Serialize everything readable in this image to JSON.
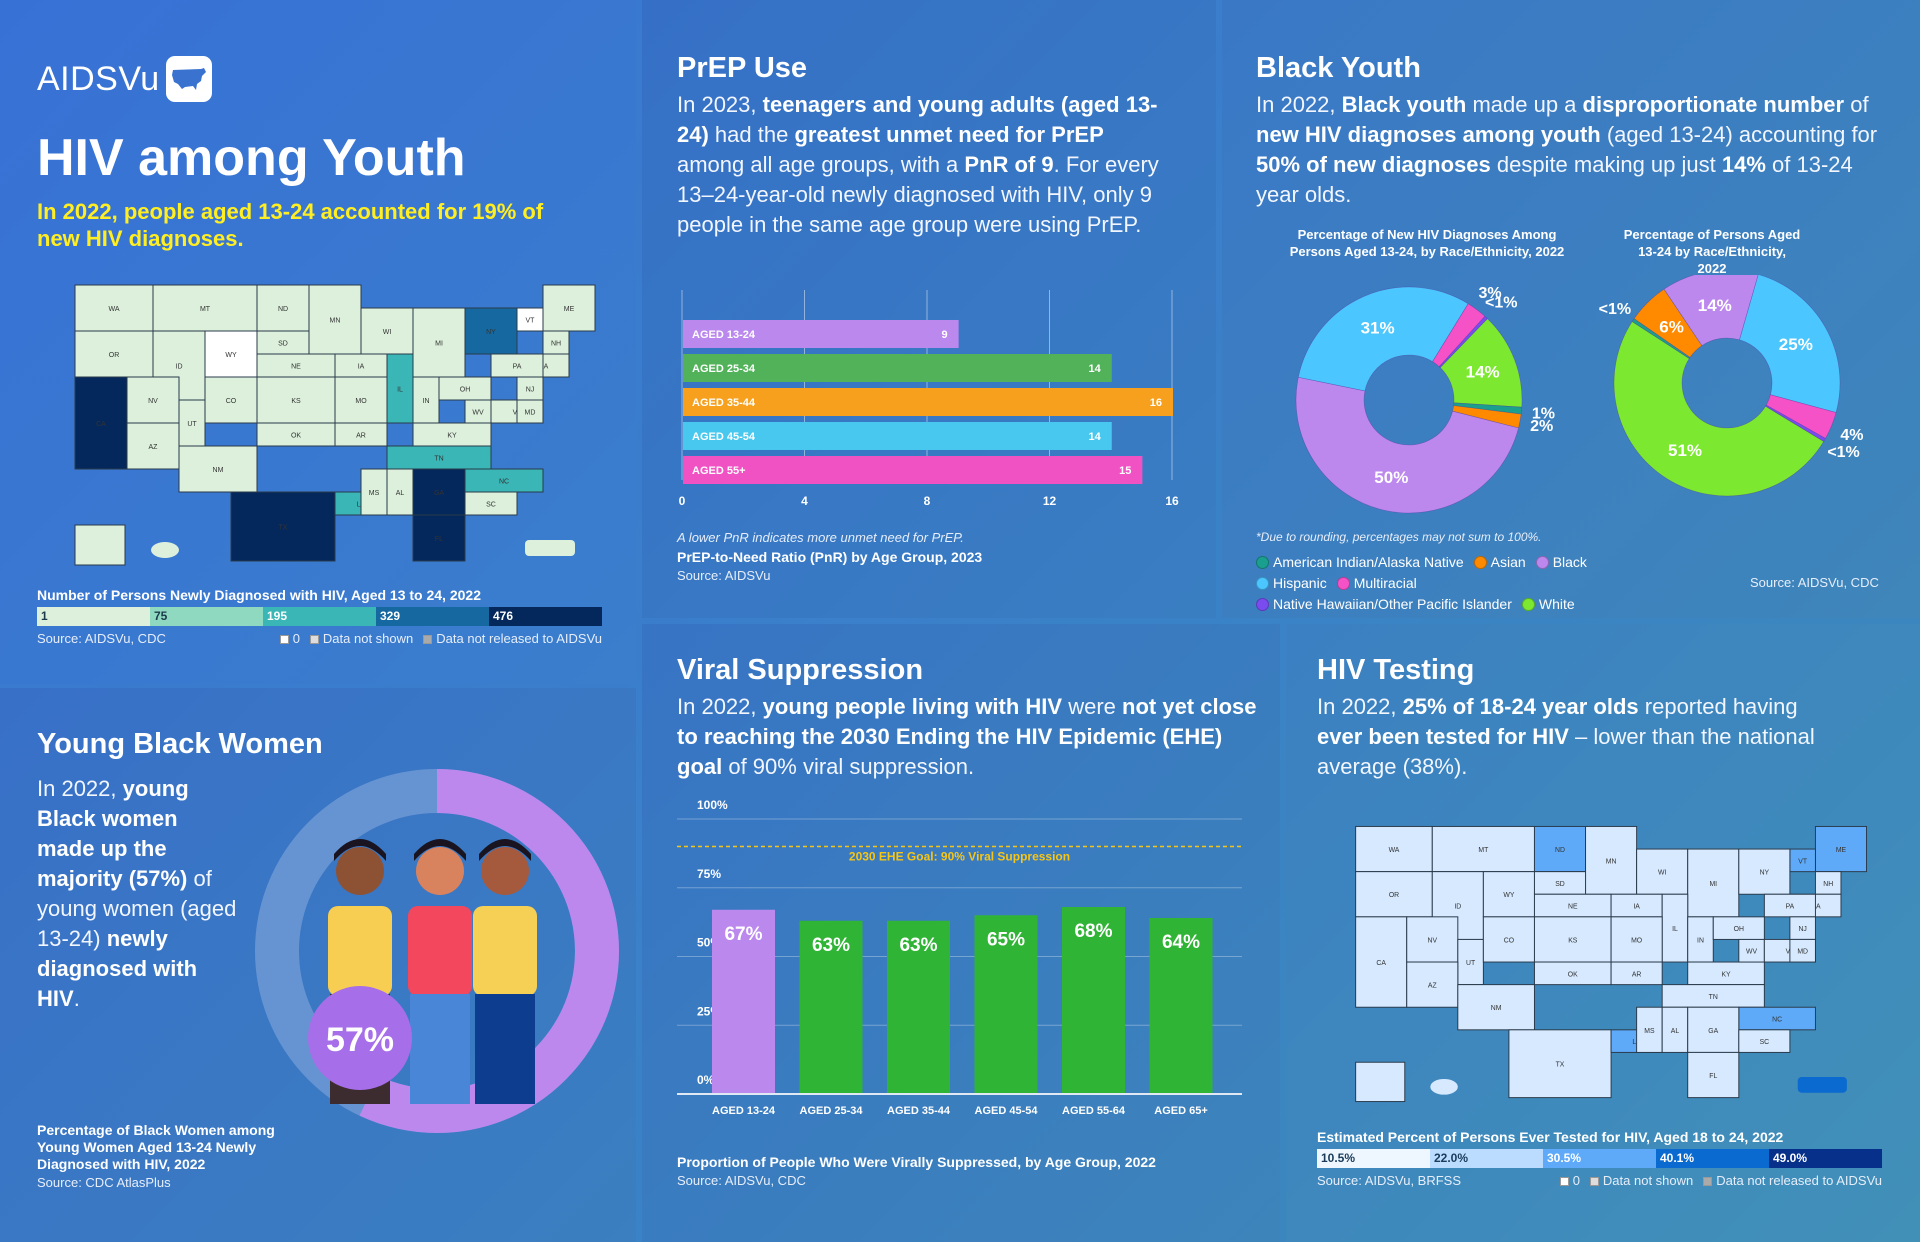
{
  "header": {
    "logo_text": "AIDSVu",
    "title": "HIV among Youth",
    "subtitle": "In 2022, people aged 13-24 accounted for 19% of new HIV diagnoses."
  },
  "diagnoses_map": {
    "caption": "Number of Persons Newly Diagnosed with HIV, Aged 13 to 24, 2022",
    "source": "Source: AIDSVu, CDC",
    "legend": [
      {
        "label": "1",
        "color": "#dcf0dc"
      },
      {
        "label": "75",
        "color": "#8fd9c0"
      },
      {
        "label": "195",
        "color": "#3bb6b6"
      },
      {
        "label": "329",
        "color": "#1669a0"
      },
      {
        "label": "476",
        "color": "#04285c"
      }
    ],
    "key": [
      "0",
      "Data not shown",
      "Data not released to AIDSVu"
    ],
    "highlight_states": {
      "CA": "476",
      "TX": "476",
      "GA": "476",
      "FL": "476",
      "NY": "329",
      "IL": "195",
      "TN": "195",
      "LA": "195",
      "NC": "195",
      "WY": "0",
      "VT": "0"
    }
  },
  "prep": {
    "title": "PrEP Use",
    "para": [
      {
        "t": "In 2023, ",
        "b": false
      },
      {
        "t": "teenagers and young adults (aged 13-24)",
        "b": true
      },
      {
        "t": " had the ",
        "b": false
      },
      {
        "t": "greatest unmet need for PrEP",
        "b": true
      },
      {
        "t": " among all age groups, with a ",
        "b": false
      },
      {
        "t": "PnR of 9",
        "b": true
      },
      {
        "t": ". For every 13–24-year-old newly diagnosed with HIV, only 9 people in the same age group were using PrEP.",
        "b": false
      }
    ],
    "note": "A lower PnR indicates more unmet need for PrEP.",
    "caption": "PrEP-to-Need Ratio (PnR) by Age Group, 2023",
    "source": "Source: AIDSVu"
  },
  "black_youth": {
    "title": "Black Youth",
    "para": [
      {
        "t": "In 2022, ",
        "b": false
      },
      {
        "t": "Black youth",
        "b": true
      },
      {
        "t": " made up a ",
        "b": false
      },
      {
        "t": "disproportionate number",
        "b": true
      },
      {
        "t": " of ",
        "b": false
      },
      {
        "t": "new HIV diagnoses among youth",
        "b": true
      },
      {
        "t": " (aged 13-24) accounting for ",
        "b": false
      },
      {
        "t": "50% of new diagnoses",
        "b": true
      },
      {
        "t": " despite making up just ",
        "b": false
      },
      {
        "t": "14%",
        "b": true
      },
      {
        "t": " of 13-24 year olds.",
        "b": false
      }
    ],
    "footnote": "*Due to rounding, percentages may not sum to 100%.",
    "legend": [
      {
        "label": "American Indian/Alaska Native",
        "color": "#1a9e8e"
      },
      {
        "label": "Asian",
        "color": "#ff8a00"
      },
      {
        "label": "Black",
        "color": "#bd88ee"
      },
      {
        "label": "Hispanic",
        "color": "#4cc6ff"
      },
      {
        "label": "Multiracial",
        "color": "#f452c6"
      },
      {
        "label": "Native Hawaiian/Other Pacific Islander",
        "color": "#7a4cf0"
      },
      {
        "label": "White",
        "color": "#7ce830"
      }
    ],
    "source": "Source: AIDSVu, CDC"
  },
  "young_black_women": {
    "title": "Young Black Women",
    "para": [
      {
        "t": "In 2022, ",
        "b": false
      },
      {
        "t": "young Black women made up the majority (57%)",
        "b": true
      },
      {
        "t": " of young women (aged 13-24) ",
        "b": false
      },
      {
        "t": "newly diagnosed with HIV",
        "b": true
      },
      {
        "t": ".",
        "b": false
      }
    ],
    "percent_label": "57%",
    "percent_value": 57,
    "caption": "Percentage of Black Women among Young Women Aged 13-24 Newly Diagnosed with HIV, 2022",
    "source": "Source: CDC AtlasPlus"
  },
  "viral": {
    "title": "Viral Suppression",
    "para": [
      {
        "t": "In 2022, ",
        "b": false
      },
      {
        "t": "young people living with HIV",
        "b": true
      },
      {
        "t": " were ",
        "b": false
      },
      {
        "t": "not yet close to reaching the 2030 Ending the HIV Epidemic (EHE) goal",
        "b": true
      },
      {
        "t": " of 90% viral suppression.",
        "b": false
      }
    ],
    "goal_label": "2030 EHE Goal: 90% Viral Suppression",
    "caption": "Proportion of People Who Were Virally Suppressed, by Age Group, 2022",
    "source": "Source: AIDSVu, CDC"
  },
  "testing": {
    "title": "HIV Testing",
    "para": [
      {
        "t": "In 2022, ",
        "b": false
      },
      {
        "t": "25% of 18-24 year olds",
        "b": true
      },
      {
        "t": " reported having ",
        "b": false
      },
      {
        "t": "ever been tested for HIV",
        "b": true
      },
      {
        "t": " – lower than the national average (38%).",
        "b": false
      }
    ],
    "caption": "Estimated Percent of Persons Ever Tested for HIV, Aged 18 to 24, 2022",
    "source": "Source: AIDSVu, BRFSS",
    "legend": [
      {
        "label": "10.5%",
        "color": "#eef7ff",
        "text": "#1a3b5a"
      },
      {
        "label": "22.0%",
        "color": "#bcdcff",
        "text": "#1a3b5a"
      },
      {
        "label": "30.5%",
        "color": "#5eaaf8",
        "text": "#ffffff"
      },
      {
        "label": "40.1%",
        "color": "#0a6ad0",
        "text": "#ffffff"
      },
      {
        "label": "49.0%",
        "color": "#06308a",
        "text": "#ffffff"
      }
    ],
    "key": [
      "0",
      "Data not shown",
      "Data not released to AIDSVu"
    ],
    "highlight_states": {
      "ND": "30.5%",
      "LA": "30.5%",
      "NC": "30.5%",
      "ME": "30.5%",
      "VT": "30.5%",
      "PR": "40.1%"
    }
  },
  "chart_data": [
    {
      "type": "bar",
      "orientation": "horizontal",
      "title": "PrEP-to-Need Ratio (PnR) by Age Group, 2023",
      "categories": [
        "AGED 13-24",
        "AGED 25-34",
        "AGED 35-44",
        "AGED 45-54",
        "AGED 55+"
      ],
      "values": [
        9,
        14,
        16,
        14,
        15
      ],
      "colors": [
        "#bb88ee",
        "#52b25a",
        "#f6a01e",
        "#48c8ee",
        "#f052c4"
      ],
      "xlim": [
        0,
        16
      ],
      "xticks": [
        0,
        4,
        8,
        12,
        16
      ],
      "grid": true
    },
    {
      "type": "pie",
      "donut": true,
      "title": "Percentage of New HIV Diagnoses Among Persons Aged 13-24, by Race/Ethnicity, 2022",
      "slices": [
        {
          "label": "Black",
          "value": 50,
          "text": "50%"
        },
        {
          "label": "Hispanic",
          "value": 31,
          "text": "31%"
        },
        {
          "label": "Multiracial",
          "value": 3,
          "text": "3%"
        },
        {
          "label": "Native Hawaiian/Other Pacific Islander",
          "value": 0.5,
          "text": "<1%"
        },
        {
          "label": "White",
          "value": 14,
          "text": "14%"
        },
        {
          "label": "American Indian/Alaska Native",
          "value": 1,
          "text": "1%"
        },
        {
          "label": "Asian",
          "value": 2,
          "text": "2%"
        }
      ]
    },
    {
      "type": "pie",
      "donut": true,
      "title": "Percentage of Persons Aged 13-24 by Race/Ethnicity, 2022",
      "slices": [
        {
          "label": "Hispanic",
          "value": 25,
          "text": "25%"
        },
        {
          "label": "Multiracial",
          "value": 4,
          "text": "4%"
        },
        {
          "label": "Native Hawaiian/Other Pacific Islander",
          "value": 0.5,
          "text": "<1%"
        },
        {
          "label": "White",
          "value": 51,
          "text": "51%"
        },
        {
          "label": "American Indian/Alaska Native",
          "value": 0.5,
          "text": "<1%"
        },
        {
          "label": "Asian",
          "value": 6,
          "text": "6%"
        },
        {
          "label": "Black",
          "value": 14,
          "text": "14%"
        }
      ]
    },
    {
      "type": "bar",
      "title": "Proportion of People Who Were Virally Suppressed, by Age Group, 2022",
      "categories": [
        "AGED 13-24",
        "AGED 25-34",
        "AGED 35-44",
        "AGED 45-54",
        "AGED 55-64",
        "AGED 65+"
      ],
      "values": [
        67,
        63,
        63,
        65,
        68,
        64
      ],
      "value_labels": [
        "67%",
        "63%",
        "63%",
        "65%",
        "68%",
        "64%"
      ],
      "colors": [
        "#bb88ee",
        "#30b436",
        "#30b436",
        "#30b436",
        "#30b436",
        "#30b436"
      ],
      "ylim": [
        0,
        100
      ],
      "yticks": [
        "0%",
        "25%",
        "50%",
        "75%",
        "100%"
      ],
      "reference_line": {
        "value": 90,
        "label": "2030 EHE Goal: 90% Viral Suppression"
      },
      "grid": true
    },
    {
      "type": "pie",
      "donut": true,
      "title": "Percentage of Black Women among Young Women Aged 13-24 Newly Diagnosed with HIV, 2022",
      "slices": [
        {
          "label": "Black women",
          "value": 57,
          "text": "57%"
        },
        {
          "label": "Other",
          "value": 43,
          "text": ""
        }
      ]
    }
  ]
}
